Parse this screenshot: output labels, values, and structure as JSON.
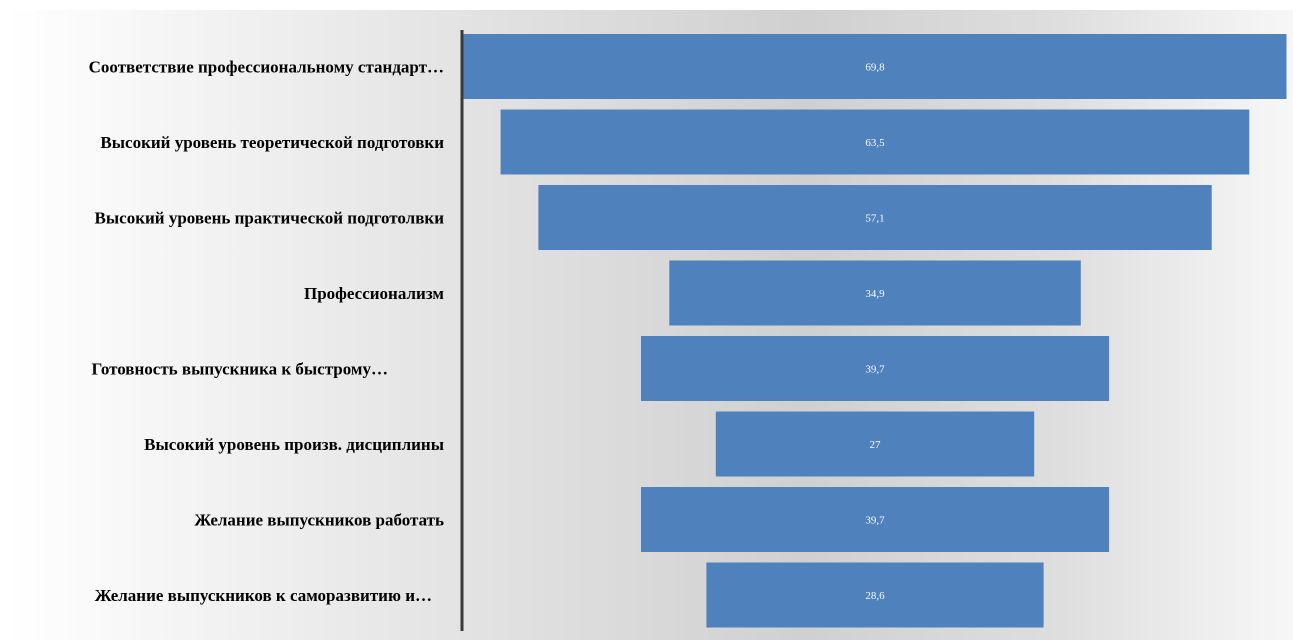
{
  "chart_data": {
    "type": "bar",
    "orientation": "horizontal",
    "layout": "funnel",
    "categories": [
      "Соответствие профессиональному стандарт…",
      "Высокий уровень теоретической подготовки",
      "Высокий уровень практической подготолвки",
      "Профессионализм",
      "Готовность выпускника к быстрому…",
      "Высокий уровень произв. дисциплины",
      "Желание выпускников работать",
      "Желание выпускников к саморазвитию и…"
    ],
    "values": [
      69.8,
      63.5,
      57.1,
      34.9,
      39.7,
      27,
      39.7,
      28.6
    ],
    "data_labels": [
      "69,8",
      "63,5",
      "57,1",
      "34,9",
      "39,7",
      "27",
      "39,7",
      "28,6"
    ],
    "title": "",
    "xlabel": "",
    "ylabel": "",
    "grid": false,
    "legend": "none",
    "colors": {
      "bar": "#4f81bd",
      "axis": "#3a3a3a",
      "data_label": "#ffffff"
    }
  }
}
